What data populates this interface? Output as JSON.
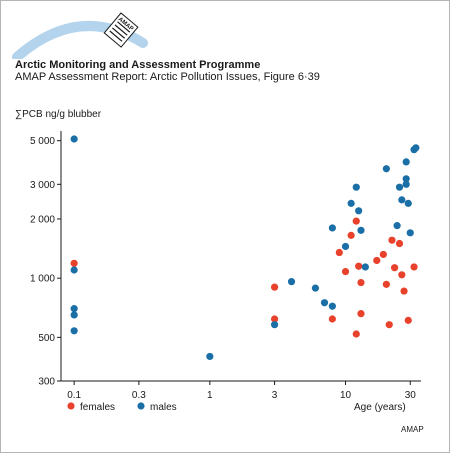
{
  "header": {
    "logo_text": "AMAP",
    "organization": "Arctic Monitoring and Assessment Programme",
    "figure_caption": "AMAP Assessment Report: Arctic Pollution Issues, Figure 6·39"
  },
  "credit": "AMAP",
  "colors": {
    "females": "#e8412c",
    "males": "#1a6fa6",
    "logo_arc": "#b3d4ec"
  },
  "chart_data": {
    "type": "scatter",
    "title": "",
    "ylabel": "∑PCB ng/g blubber",
    "xlabel": "Age (years)",
    "x_scale": "log",
    "y_scale": "log",
    "xlim": [
      0.08,
      36
    ],
    "ylim": [
      300,
      5600
    ],
    "x_ticks": [
      0.1,
      0.3,
      1,
      3,
      10,
      30
    ],
    "x_tick_labels": [
      "0.1",
      "0.3",
      "1",
      "3",
      "10",
      "30"
    ],
    "y_ticks": [
      300,
      500,
      1000,
      2000,
      3000,
      5000
    ],
    "y_tick_labels": [
      "300",
      "500",
      "1 000",
      "2 000",
      "3 000",
      "5 000"
    ],
    "grid": false,
    "legend_position": "bottom-left",
    "series": [
      {
        "name": "females",
        "color": "#e8412c",
        "points": [
          {
            "x": 0.1,
            "y": 1190
          },
          {
            "x": 3,
            "y": 900
          },
          {
            "x": 3,
            "y": 620
          },
          {
            "x": 8,
            "y": 620
          },
          {
            "x": 9,
            "y": 1350
          },
          {
            "x": 10,
            "y": 1080
          },
          {
            "x": 11,
            "y": 1650
          },
          {
            "x": 12,
            "y": 1950
          },
          {
            "x": 12,
            "y": 520
          },
          {
            "x": 12.5,
            "y": 1150
          },
          {
            "x": 13,
            "y": 950
          },
          {
            "x": 13,
            "y": 660
          },
          {
            "x": 17,
            "y": 1230
          },
          {
            "x": 19,
            "y": 1320
          },
          {
            "x": 20,
            "y": 930
          },
          {
            "x": 21,
            "y": 580
          },
          {
            "x": 22,
            "y": 1560
          },
          {
            "x": 23,
            "y": 1130
          },
          {
            "x": 25,
            "y": 1500
          },
          {
            "x": 26,
            "y": 1040
          },
          {
            "x": 27,
            "y": 860
          },
          {
            "x": 29,
            "y": 610
          },
          {
            "x": 32,
            "y": 1140
          }
        ]
      },
      {
        "name": "males",
        "color": "#1a6fa6",
        "points": [
          {
            "x": 0.1,
            "y": 5100
          },
          {
            "x": 0.1,
            "y": 1100
          },
          {
            "x": 0.1,
            "y": 700
          },
          {
            "x": 0.1,
            "y": 650
          },
          {
            "x": 0.1,
            "y": 540
          },
          {
            "x": 1,
            "y": 400
          },
          {
            "x": 3,
            "y": 580
          },
          {
            "x": 4,
            "y": 960
          },
          {
            "x": 6,
            "y": 890
          },
          {
            "x": 7,
            "y": 750
          },
          {
            "x": 8,
            "y": 1800
          },
          {
            "x": 8,
            "y": 720
          },
          {
            "x": 10,
            "y": 1450
          },
          {
            "x": 11,
            "y": 2400
          },
          {
            "x": 12,
            "y": 2900
          },
          {
            "x": 12.5,
            "y": 2200
          },
          {
            "x": 13,
            "y": 1750
          },
          {
            "x": 14,
            "y": 1140
          },
          {
            "x": 20,
            "y": 3600
          },
          {
            "x": 24,
            "y": 1850
          },
          {
            "x": 25,
            "y": 2900
          },
          {
            "x": 26,
            "y": 2500
          },
          {
            "x": 28,
            "y": 3900
          },
          {
            "x": 28,
            "y": 3200
          },
          {
            "x": 28,
            "y": 3000
          },
          {
            "x": 29,
            "y": 2400
          },
          {
            "x": 30,
            "y": 1700
          },
          {
            "x": 32,
            "y": 4500
          },
          {
            "x": 33,
            "y": 4600
          }
        ]
      }
    ]
  }
}
